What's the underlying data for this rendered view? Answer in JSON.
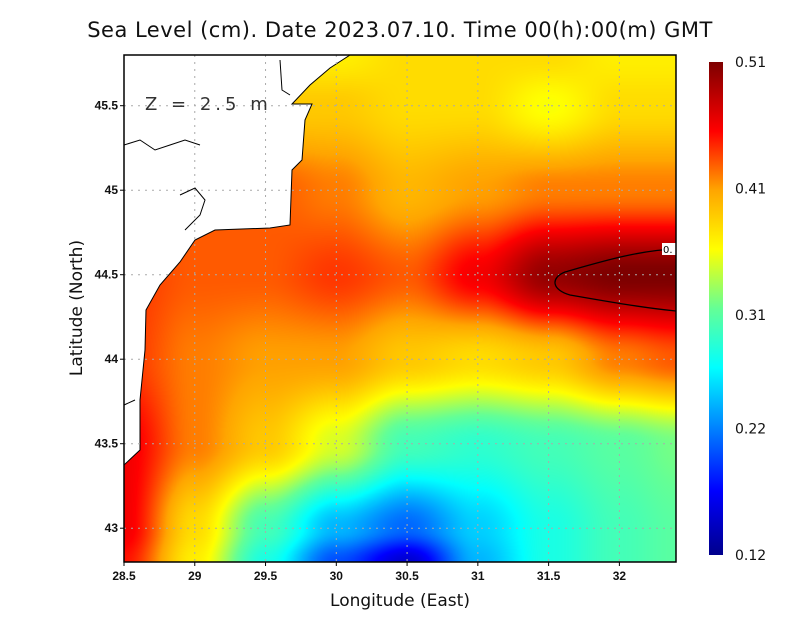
{
  "chart_data": {
    "type": "heatmap",
    "title": "Sea Level (cm). Date 2023.07.10. Time 00(h):00(m) GMT",
    "annotation": "Z = 2.5 m",
    "xlabel": "Longitude (East)",
    "ylabel": "Latitude (North)",
    "xlim": [
      28.5,
      32.4
    ],
    "ylim": [
      42.8,
      45.8
    ],
    "xticks": [
      "28.5",
      "29",
      "29.5",
      "30",
      "30.5",
      "31",
      "31.5",
      "32"
    ],
    "yticks": [
      "43",
      "43.5",
      "44",
      "44.5",
      "45",
      "45.5"
    ],
    "grid": true,
    "colorbar": {
      "min": 0.12,
      "max": 0.51,
      "labels": [
        "0.51",
        "0.41",
        "0.31",
        "0.22",
        "0.12"
      ],
      "colormap": "jet"
    },
    "contour": {
      "level": 0.5,
      "label": "0."
    },
    "lons": [
      28.5,
      29,
      29.5,
      30,
      30.5,
      31,
      31.5,
      32,
      32.4
    ],
    "lats": [
      45.8,
      45.5,
      45,
      44.5,
      44,
      43.5,
      43,
      42.8
    ],
    "values": [
      [
        0.37,
        0.37,
        0.37,
        0.37,
        0.38,
        0.38,
        0.38,
        0.37,
        0.37
      ],
      [
        0.39,
        0.39,
        0.39,
        0.39,
        0.38,
        0.38,
        0.36,
        0.38,
        0.38
      ],
      [
        0.43,
        0.43,
        0.43,
        0.42,
        0.4,
        0.41,
        0.42,
        0.42,
        0.42
      ],
      [
        0.44,
        0.43,
        0.43,
        0.44,
        0.43,
        0.46,
        0.5,
        0.51,
        0.51
      ],
      [
        0.44,
        0.42,
        0.41,
        0.41,
        0.39,
        0.38,
        0.39,
        0.42,
        0.43
      ],
      [
        0.46,
        0.42,
        0.39,
        0.35,
        0.3,
        0.29,
        0.3,
        0.31,
        0.32
      ],
      [
        0.46,
        0.38,
        0.3,
        0.24,
        0.21,
        0.25,
        0.28,
        0.3,
        0.31
      ],
      [
        0.45,
        0.37,
        0.28,
        0.2,
        0.15,
        0.24,
        0.28,
        0.3,
        0.31
      ]
    ]
  }
}
